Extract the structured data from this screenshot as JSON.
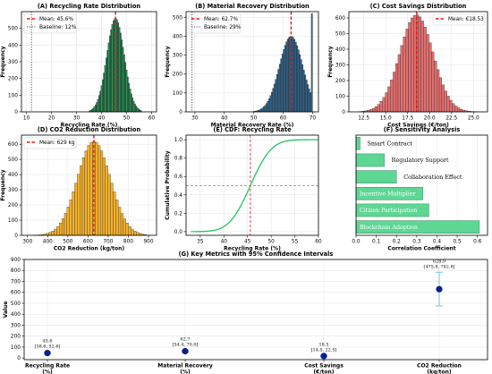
{
  "chart_data": [
    {
      "id": "A",
      "type": "bar",
      "title": "(A) Recycling Rate Distribution",
      "xlabel": "Recycling Rate (%)",
      "ylabel": "Frequency",
      "xlim": [
        8,
        62
      ],
      "ylim": [
        0,
        600
      ],
      "xticks": [
        10,
        20,
        30,
        40,
        50,
        60
      ],
      "yticks": [
        0,
        100,
        200,
        300,
        400,
        500
      ],
      "color": "#2e8b57",
      "hist": {
        "mean": 45.6,
        "sd": 3.5,
        "peak": 560,
        "start": 35.0,
        "end": 56.0,
        "bins": 44,
        "clip": null
      },
      "lines": [
        {
          "x": 45.6,
          "label": "Mean: 45.6%",
          "color": "#e31a1c",
          "style": "dashed"
        },
        {
          "x": 12,
          "label": "Baseline: 12%",
          "color": "#555555",
          "style": "dotted"
        }
      ],
      "legend_position": "upper-left"
    },
    {
      "id": "B",
      "type": "bar",
      "title": "(B) Material Recovery Distribution",
      "xlabel": "Material Recovery Rate (%)",
      "ylabel": "Frequency",
      "xlim": [
        27,
        72
      ],
      "ylim": [
        0,
        530
      ],
      "xticks": [
        30,
        40,
        50,
        60,
        70
      ],
      "yticks": [
        0,
        100,
        200,
        300,
        400,
        500
      ],
      "color": "#3b6a8f",
      "hist": {
        "mean": 62.7,
        "sd": 4.0,
        "peak": 400,
        "start": 50.0,
        "end": 70.0,
        "bins": 44,
        "clip": {
          "x": 70.0,
          "value": 520
        }
      },
      "lines": [
        {
          "x": 62.7,
          "label": "Mean: 62.7%",
          "color": "#e31a1c",
          "style": "dashed"
        },
        {
          "x": 29,
          "label": "Baseline: 29%",
          "color": "#555555",
          "style": "dotted"
        }
      ],
      "legend_position": "upper-left"
    },
    {
      "id": "C",
      "type": "bar",
      "title": "(C) Cost Savings Distribution",
      "xlabel": "Cost Savings (€/ton)",
      "ylabel": "Frequency",
      "xlim": [
        10.8,
        26.6
      ],
      "ylim": [
        0,
        640
      ],
      "xticks": [
        12.5,
        15.0,
        17.5,
        20.0,
        22.5,
        25.0
      ],
      "yticks": [
        0,
        100,
        200,
        300,
        400,
        500,
        600
      ],
      "color": "#e07070",
      "hist": {
        "mean": 18.5,
        "sd": 1.9,
        "peak": 620,
        "start": 12.0,
        "end": 25.5,
        "bins": 46,
        "clip": null
      },
      "lines": [
        {
          "x": 18.53,
          "label": "Mean: €18.53",
          "color": "#e31a1c",
          "style": "dashed"
        }
      ],
      "legend_position": "upper-right"
    },
    {
      "id": "D",
      "type": "bar",
      "title": "(D) CO2 Reduction Distribution",
      "xlabel": "CO2 Reduction (kg/ton)",
      "ylabel": "Frequency",
      "xlim": [
        270,
        940
      ],
      "ylim": [
        0,
        660
      ],
      "xticks": [
        300,
        400,
        500,
        600,
        700,
        800,
        900
      ],
      "yticks": [
        0,
        100,
        200,
        300,
        400,
        500,
        600
      ],
      "color": "#f0b030",
      "hist": {
        "mean": 629,
        "sd": 82,
        "peak": 620,
        "start": 330,
        "end": 890,
        "bins": 44,
        "clip": null
      },
      "lines": [
        {
          "x": 629,
          "label": "Mean: 629 kg",
          "color": "#e31a1c",
          "style": "dashed"
        }
      ],
      "legend_position": "upper-left"
    },
    {
      "id": "E",
      "type": "line",
      "title": "(E) CDF: Recycling Rate",
      "xlabel": "Recycling Rate (%)",
      "ylabel": "Cumulative Probability",
      "xlim": [
        32,
        60
      ],
      "ylim": [
        -0.04,
        1.05
      ],
      "xticks": [
        35,
        40,
        45,
        50,
        55,
        60
      ],
      "yticks": [
        0.0,
        0.2,
        0.4,
        0.6,
        0.8,
        1.0
      ],
      "color": "#22c55e",
      "cdf": {
        "mean": 45.6,
        "sd": 3.5,
        "start": 33.0,
        "end": 60.0
      },
      "refs": {
        "x": 45.6,
        "y": 0.5
      }
    },
    {
      "id": "F",
      "type": "barh",
      "title": "(F) Sensitivity Analysis",
      "xlabel": "Correlation Coefficient",
      "ylabel": "",
      "xlim": [
        0,
        0.65
      ],
      "xticks": [
        0.0,
        0.1,
        0.2,
        0.3,
        0.4,
        0.5,
        0.6
      ],
      "color": "#5ed694",
      "categories": [
        "Smart Contract",
        "Regulatory Support",
        "Collaboration Effect",
        "Incentive Multiplier",
        "Citizen Participation",
        "Blockchain Adoption"
      ],
      "values": [
        0.02,
        0.14,
        0.2,
        0.33,
        0.36,
        0.61
      ]
    },
    {
      "id": "G",
      "type": "scatter",
      "title": "(G) Key Metrics with 95% Confidence Intervals",
      "xlabel": "",
      "ylabel": "Value",
      "ylim": [
        -15,
        900
      ],
      "yticks": [
        0,
        100,
        200,
        300,
        400,
        500,
        600,
        700,
        800,
        900
      ],
      "categories": [
        "Recycling Rate (%)",
        "Material Recovery (%)",
        "Cost Savings (€/ton)",
        "CO2 Reduction (kg/ton)"
      ],
      "values": [
        45.6,
        62.7,
        18.5,
        628.9
      ],
      "ci": [
        [
          38.6,
          52.6
        ],
        [
          54.4,
          70.0
        ],
        [
          14.5,
          22.5
        ],
        [
          475.8,
          782.8
        ]
      ],
      "annotations": [
        {
          "value": "45.6",
          "ci": "[38.6, 52.6]"
        },
        {
          "value": "62.7",
          "ci": "[54.4, 70.0]"
        },
        {
          "value": "18.5",
          "ci": "[14.5, 22.5]"
        },
        {
          "value": "628.9",
          "ci": "[475.8, 782.8]"
        }
      ],
      "point_color": "#0a1f8f",
      "error_color": "#8ec9ea"
    }
  ]
}
